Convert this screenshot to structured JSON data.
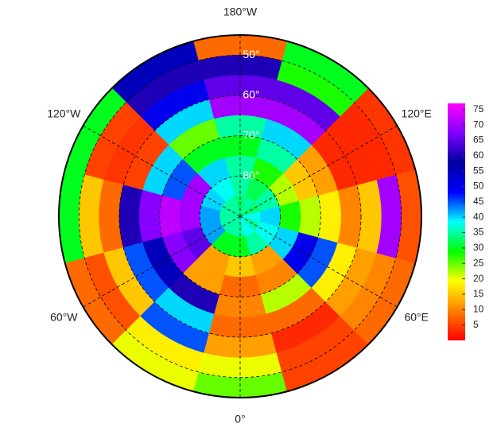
{
  "chart_data": {
    "type": "polar_heatmap",
    "lat_bins": [
      45,
      50,
      55,
      60,
      65,
      70,
      75,
      80,
      85,
      90
    ],
    "lon_bins": [
      -15,
      15,
      45,
      75,
      105,
      135,
      165,
      195,
      225,
      255,
      285,
      315,
      345
    ],
    "values": [
      [
        25,
        5,
        8,
        6,
        4,
        30,
        8,
        55,
        30,
        30,
        8,
        20
      ],
      [
        20,
        5,
        10,
        70,
        3,
        28,
        60,
        60,
        5,
        15,
        6,
        18
      ],
      [
        12,
        3,
        12,
        15,
        3,
        65,
        65,
        50,
        4,
        8,
        15,
        45
      ],
      [
        8,
        8,
        18,
        10,
        3,
        70,
        70,
        40,
        5,
        60,
        45,
        40
      ],
      [
        10,
        22,
        45,
        18,
        12,
        40,
        35,
        25,
        40,
        68,
        55,
        60
      ],
      [
        8,
        10,
        50,
        22,
        15,
        35,
        30,
        30,
        45,
        72,
        68,
        12
      ],
      [
        15,
        12,
        40,
        28,
        22,
        28,
        35,
        40,
        70,
        70,
        65,
        12
      ],
      [
        30,
        35,
        38,
        40,
        35,
        32,
        35,
        38,
        40,
        42,
        42,
        30
      ],
      [
        35,
        38,
        35,
        38,
        33,
        35,
        33,
        35,
        35,
        35,
        35,
        35
      ]
    ],
    "lonticks": [
      {
        "value": 0,
        "label": "0°"
      },
      {
        "value": 60,
        "label": "60°E"
      },
      {
        "value": 120,
        "label": "120°E"
      },
      {
        "value": 180,
        "label": "180°W"
      },
      {
        "value": -120,
        "label": "120°W"
      },
      {
        "value": -60,
        "label": "60°W"
      }
    ],
    "latticks": [
      {
        "value": 50,
        "label": "50°"
      },
      {
        "value": 60,
        "label": "60°"
      },
      {
        "value": 70,
        "label": "70°"
      },
      {
        "value": 80,
        "label": "80°"
      }
    ],
    "colormap": [
      "#ff0000",
      "#ff8000",
      "#ffff00",
      "#00ff00",
      "#00ffff",
      "#0000ff",
      "#0000a0",
      "#8000ff",
      "#ff00ff"
    ],
    "clim": [
      0,
      77
    ],
    "cticks": [
      5,
      10,
      15,
      20,
      25,
      30,
      35,
      40,
      45,
      50,
      55,
      60,
      65,
      70,
      75
    ]
  }
}
